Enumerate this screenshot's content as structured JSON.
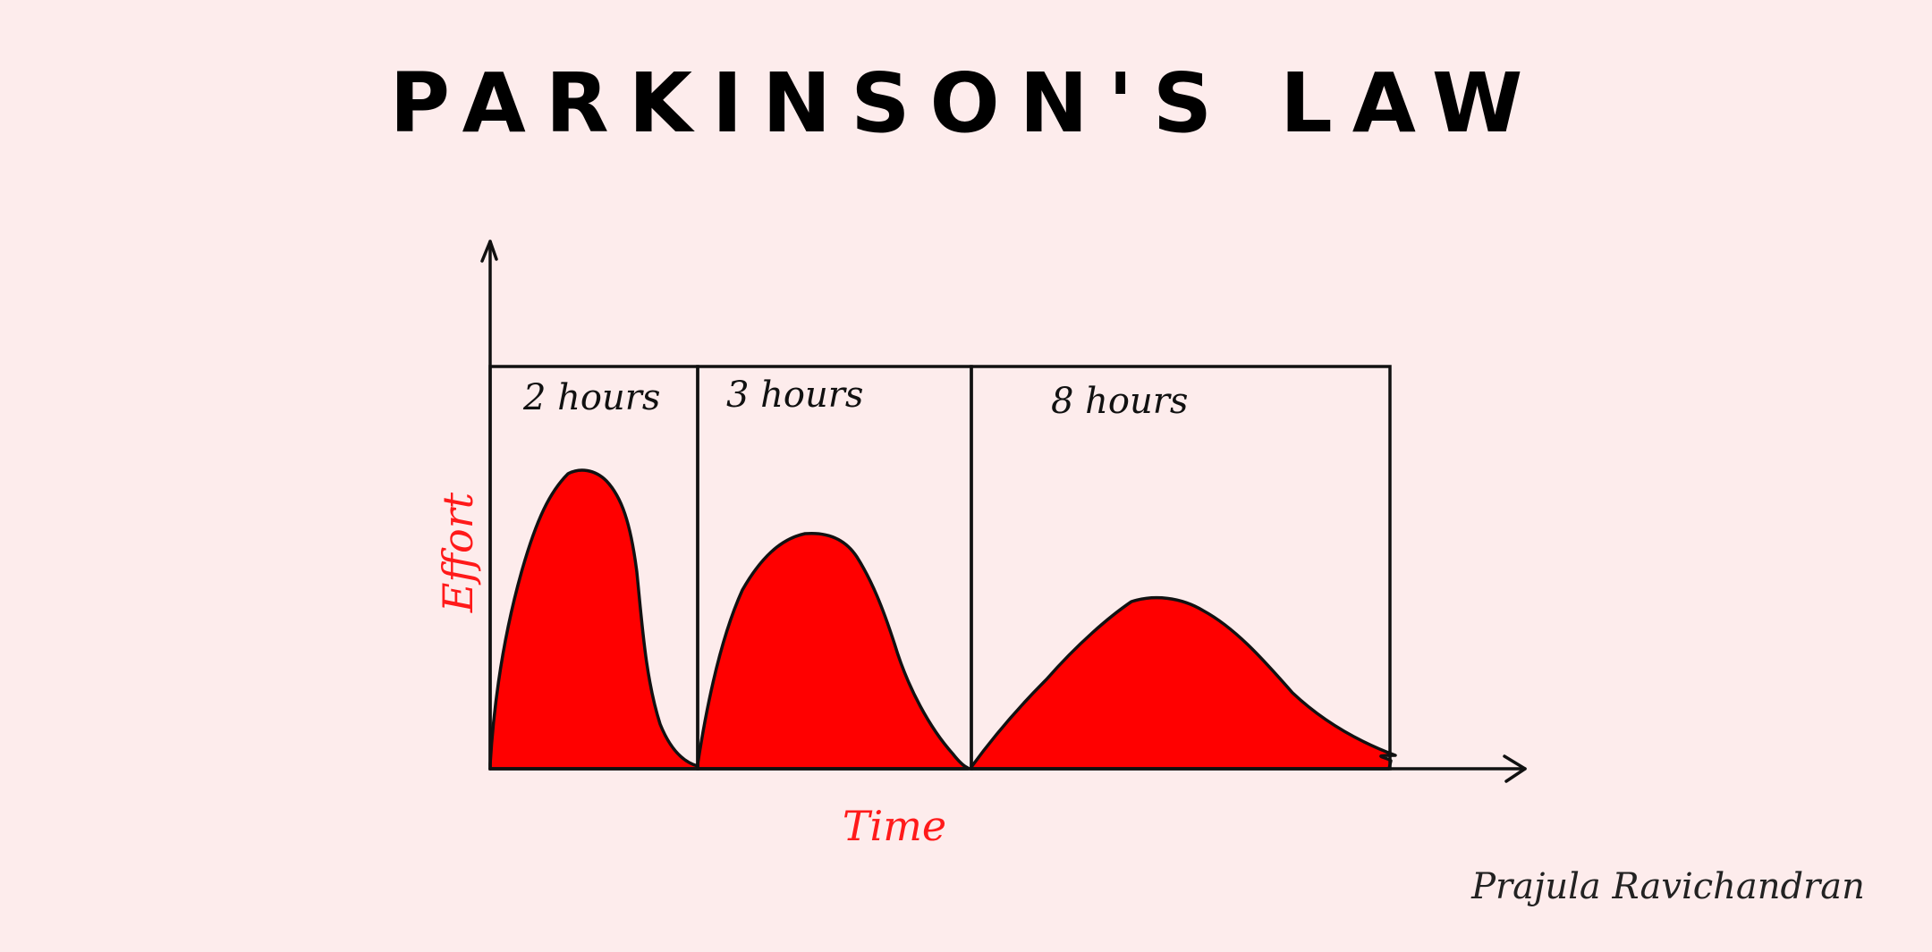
{
  "title": "PARKINSON'S LAW",
  "axes": {
    "y_label": "Effort",
    "x_label": "Time"
  },
  "segments": [
    {
      "label": "2 hours"
    },
    {
      "label": "3 hours"
    },
    {
      "label": "8 hours"
    }
  ],
  "signature": "Prajula Ravichandran",
  "colors": {
    "background": "#fdecec",
    "fill": "#ff0000",
    "axis_label": "#ff1a1a",
    "line": "#111111"
  }
}
